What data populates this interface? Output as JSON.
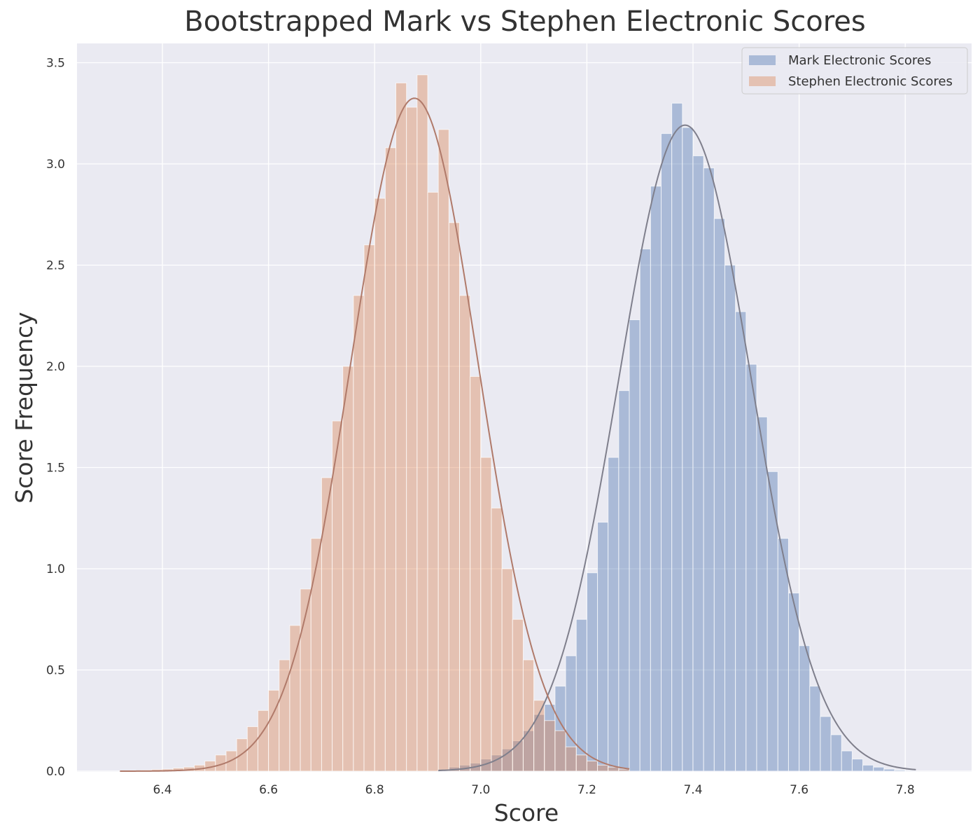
{
  "chart_data": {
    "type": "histogram",
    "title": "Bootstrapped Mark vs Stephen Electronic Scores",
    "xlabel": "Score",
    "ylabel": "Score Frequency",
    "xlim": [
      6.27,
      7.9
    ],
    "ylim": [
      0,
      3.6
    ],
    "xticks": [
      "6.4",
      "6.6",
      "6.8",
      "7.0",
      "7.2",
      "7.4",
      "7.6",
      "7.8"
    ],
    "yticks": [
      "0.0",
      "0.5",
      "1.0",
      "1.5",
      "2.0",
      "2.5",
      "3.0",
      "3.5"
    ],
    "grid": true,
    "legend_position": "top-right",
    "bin_width": 0.02,
    "series": [
      {
        "name": "Mark Electronic Scores",
        "color": "#4c72b0",
        "bin_starts": [
          6.92,
          6.94,
          6.96,
          6.98,
          7.0,
          7.02,
          7.04,
          7.06,
          7.08,
          7.1,
          7.12,
          7.14,
          7.16,
          7.18,
          7.2,
          7.22,
          7.24,
          7.26,
          7.28,
          7.3,
          7.32,
          7.34,
          7.36,
          7.38,
          7.4,
          7.42,
          7.44,
          7.46,
          7.48,
          7.5,
          7.52,
          7.54,
          7.56,
          7.58,
          7.6,
          7.62,
          7.64,
          7.66,
          7.68,
          7.7,
          7.72,
          7.74,
          7.76,
          7.78,
          7.8
        ],
        "frequencies": [
          0.01,
          0.02,
          0.03,
          0.04,
          0.06,
          0.08,
          0.11,
          0.15,
          0.2,
          0.28,
          0.33,
          0.42,
          0.57,
          0.75,
          0.98,
          1.23,
          1.55,
          1.88,
          2.23,
          2.58,
          2.89,
          3.15,
          3.3,
          3.18,
          3.04,
          2.98,
          2.73,
          2.5,
          2.27,
          2.01,
          1.75,
          1.48,
          1.15,
          0.88,
          0.62,
          0.42,
          0.27,
          0.18,
          0.1,
          0.06,
          0.03,
          0.02,
          0.01,
          0.005,
          0.002
        ],
        "kde": {
          "mean": 7.385,
          "sd": 0.125
        }
      },
      {
        "name": "Stephen Electronic Scores",
        "color": "#dd8452",
        "bin_starts": [
          6.32,
          6.34,
          6.36,
          6.38,
          6.4,
          6.42,
          6.44,
          6.46,
          6.48,
          6.5,
          6.52,
          6.54,
          6.56,
          6.58,
          6.6,
          6.62,
          6.64,
          6.66,
          6.68,
          6.7,
          6.72,
          6.74,
          6.76,
          6.78,
          6.8,
          6.82,
          6.84,
          6.86,
          6.88,
          6.9,
          6.92,
          6.94,
          6.96,
          6.98,
          7.0,
          7.02,
          7.04,
          7.06,
          7.08,
          7.1,
          7.12,
          7.14,
          7.16,
          7.18,
          7.2,
          7.22,
          7.24,
          7.26
        ],
        "frequencies": [
          0.002,
          0.003,
          0.005,
          0.008,
          0.01,
          0.015,
          0.02,
          0.03,
          0.05,
          0.08,
          0.1,
          0.16,
          0.22,
          0.3,
          0.4,
          0.55,
          0.72,
          0.9,
          1.15,
          1.45,
          1.73,
          2.0,
          2.35,
          2.6,
          2.83,
          3.08,
          3.4,
          3.28,
          3.44,
          2.86,
          3.17,
          2.71,
          2.35,
          1.95,
          1.55,
          1.3,
          1.0,
          0.75,
          0.55,
          0.35,
          0.25,
          0.2,
          0.12,
          0.08,
          0.05,
          0.03,
          0.02,
          0.01
        ],
        "kde": {
          "mean": 6.875,
          "sd": 0.12
        }
      }
    ]
  }
}
